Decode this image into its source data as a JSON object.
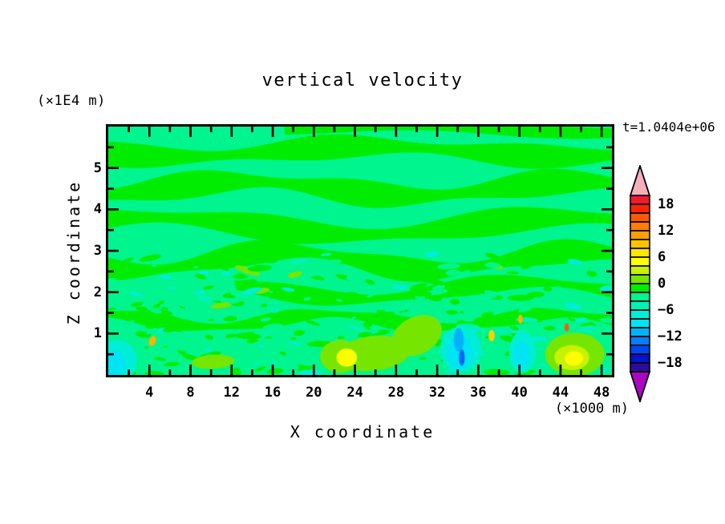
{
  "figure": {
    "title": "vertical velocity",
    "timestamp": "t=1.0404e+06",
    "y_axis_unit": "(×1E4 m)",
    "x_axis_unit": "(×1000 m)",
    "x_axis_label": "X coordinate",
    "y_axis_label": "Z coordinate"
  },
  "chart_data": {
    "type": "heatmap",
    "subtype": "filled-contour",
    "title": "vertical velocity",
    "annotation": "t=1.0404e+06",
    "xlabel": "X coordinate",
    "xlabel_unit": "(×1000 m)",
    "ylabel": "Z coordinate",
    "ylabel_unit": "(×1E4 m)",
    "xlim": [
      0,
      49
    ],
    "ylim": [
      0,
      6
    ],
    "x_major_ticks": [
      4,
      8,
      12,
      16,
      20,
      24,
      28,
      32,
      36,
      40,
      44,
      48
    ],
    "x_minor_step": 2,
    "y_major_ticks": [
      1,
      2,
      3,
      4,
      5
    ],
    "y_minor_step": 0.5,
    "grid": false,
    "legend_position": "right",
    "colorbar": {
      "labels": [
        "18",
        "12",
        "6",
        "0",
        "−6",
        "−12",
        "−18"
      ],
      "level_min": -20,
      "level_max": 20,
      "level_step": 2,
      "band_colors_top_to_bottom": [
        "#f3192e",
        "#fb2500",
        "#ff5800",
        "#ff7e00",
        "#ffa000",
        "#ffc300",
        "#ffe600",
        "#ffff00",
        "#c8f200",
        "#76e600",
        "#00ec00",
        "#00f58f",
        "#00f2b4",
        "#00eed6",
        "#00e4f4",
        "#00b2fa",
        "#0080ff",
        "#0047f2",
        "#0014cc",
        "#2b0d9e"
      ],
      "over_arrow_color": "#f8afbc",
      "under_arrow_color": "#a907c2"
    },
    "field_description": "Vertical velocity w mostly between -2 and +2: alternating wavy horizontal green/mint bands aloft (gravity waves), turbulent speckle below z=3e4 m, updraft cores to ~8 (yellow in chartreuse) near x=23 and x=45 at low z, downdrafts to ~-10 (cyan with blue specks) near x=1, x=34 and x=40.",
    "field_render": {
      "background_color": "#00f58f",
      "band_color": "#00ec00",
      "stripes": [
        {
          "y": 0.015,
          "h": 0.022,
          "amp": 0.012,
          "len": 1.0,
          "ph": 1.5,
          "x0": 0.35,
          "x1": 1
        },
        {
          "y": 0.1,
          "h": 0.046,
          "amp": 0.022,
          "len": 1.3,
          "ph": 0.5,
          "x0": 0,
          "x1": 1
        },
        {
          "y": 0.25,
          "h": 0.05,
          "amp": 0.03,
          "len": 1.5,
          "ph": 2.2,
          "x0": 0,
          "x1": 1
        },
        {
          "y": 0.4,
          "h": 0.05,
          "amp": 0.035,
          "len": 1.2,
          "ph": 4.1,
          "x0": 0,
          "x1": 1
        },
        {
          "y": 0.54,
          "h": 0.045,
          "amp": 0.04,
          "len": 1.7,
          "ph": 1.0,
          "x0": 0,
          "x1": 1
        },
        {
          "y": 0.66,
          "h": 0.034,
          "amp": 0.034,
          "len": 1.5,
          "ph": 3.2,
          "x0": 0.25,
          "x1": 1
        },
        {
          "y": 0.78,
          "h": 0.028,
          "amp": 0.026,
          "len": 2.2,
          "ph": 5.0,
          "x0": 0,
          "x1": 1
        }
      ],
      "speckle": {
        "seed": 20,
        "count": 330,
        "y_min": 0.5,
        "r_min": 2,
        "r_max": 8,
        "colors": [
          "#00ec00",
          "#00f58f",
          "#00f2b4",
          "#00eed6",
          "#76e600"
        ]
      },
      "features": [
        {
          "x": 25.8,
          "y": 0.52,
          "rx": 3.6,
          "ry": 0.42,
          "rot": -6,
          "c": "#76e600"
        },
        {
          "x": 30.0,
          "y": 0.95,
          "rx": 2.6,
          "ry": 0.45,
          "rot": -28,
          "c": "#76e600"
        },
        {
          "x": 22.6,
          "y": 0.45,
          "rx": 2.0,
          "ry": 0.4,
          "rot": 0,
          "c": "#76e600"
        },
        {
          "x": 23.2,
          "y": 0.42,
          "rx": 1.0,
          "ry": 0.22,
          "rot": 0,
          "c": "#fbff00"
        },
        {
          "x": 34.3,
          "y": 0.62,
          "rx": 2.0,
          "ry": 0.55,
          "rot": 0,
          "c": "#00eed6"
        },
        {
          "x": 34.2,
          "y": 0.55,
          "rx": 1.25,
          "ry": 0.4,
          "rot": 0,
          "c": "#00e4f4"
        },
        {
          "x": 34.1,
          "y": 0.85,
          "rx": 0.5,
          "ry": 0.28,
          "rot": 0,
          "c": "#00b2fa"
        },
        {
          "x": 34.4,
          "y": 0.42,
          "rx": 0.28,
          "ry": 0.2,
          "rot": 0,
          "c": "#0066f8"
        },
        {
          "x": 40.3,
          "y": 0.55,
          "rx": 1.3,
          "ry": 0.5,
          "rot": 0,
          "c": "#00eed6"
        },
        {
          "x": 40.2,
          "y": 0.5,
          "rx": 0.75,
          "ry": 0.3,
          "rot": 0,
          "c": "#00e4f4"
        },
        {
          "x": 45.4,
          "y": 0.5,
          "rx": 2.9,
          "ry": 0.52,
          "rot": 0,
          "c": "#76e600"
        },
        {
          "x": 45.1,
          "y": 0.42,
          "rx": 1.7,
          "ry": 0.3,
          "rot": 0,
          "c": "#c8f200"
        },
        {
          "x": 45.3,
          "y": 0.4,
          "rx": 0.9,
          "ry": 0.18,
          "rot": 0,
          "c": "#fbff00"
        },
        {
          "x": 0.9,
          "y": 0.35,
          "rx": 1.9,
          "ry": 0.5,
          "rot": -15,
          "c": "#00eed6"
        },
        {
          "x": 0.6,
          "y": 0.28,
          "rx": 1.1,
          "ry": 0.3,
          "rot": -15,
          "c": "#00e4f4"
        },
        {
          "x": 10.2,
          "y": 0.32,
          "rx": 2.1,
          "ry": 0.17,
          "rot": -3,
          "c": "#76e600"
        },
        {
          "x": 4.3,
          "y": 0.82,
          "rx": 0.32,
          "ry": 0.13,
          "rot": 20,
          "c": "#ffb300"
        },
        {
          "x": 37.3,
          "y": 0.95,
          "rx": 0.3,
          "ry": 0.14,
          "rot": 0,
          "c": "#ffd000"
        },
        {
          "x": 40.1,
          "y": 1.35,
          "rx": 0.22,
          "ry": 0.11,
          "rot": 0,
          "c": "#ffb300"
        },
        {
          "x": 44.6,
          "y": 1.15,
          "rx": 0.2,
          "ry": 0.1,
          "rot": 0,
          "c": "#ff5800"
        }
      ]
    }
  }
}
